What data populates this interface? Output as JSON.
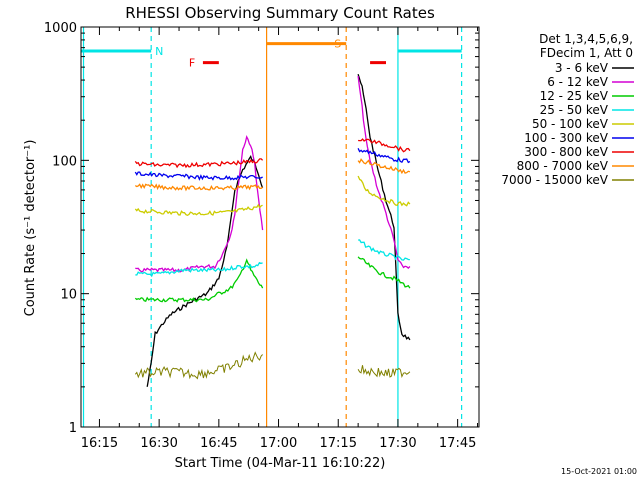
{
  "chart_data": {
    "type": "line",
    "title": "RHESSI Observing Summary Count Rates",
    "xlabel": "Start Time (04-Mar-11 16:10:22)",
    "ylabel": "Count Rate (s⁻¹ detector⁻¹)",
    "yscale": "log",
    "ylim": [
      1,
      1000
    ],
    "xlim": [
      "16:10:22",
      "17:50:22"
    ],
    "x_ticks": [
      "16:15",
      "16:30",
      "16:45",
      "17:00",
      "17:15",
      "17:30",
      "17:45"
    ],
    "y_ticks": [
      "1",
      "10",
      "100",
      "1000"
    ],
    "legend_position": "right",
    "legend_header": [
      "Det 1,3,4,5,6,9,",
      "FDecim 1, Att 0"
    ],
    "timestamp": "15-Oct-2021 01:00",
    "series": [
      {
        "name": "3 - 6 keV",
        "color": "#000000",
        "segments": [
          {
            "points": [
              [
                "16:27",
                2
              ],
              [
                "16:28",
                3
              ],
              [
                "16:29",
                5
              ],
              [
                "16:31",
                6
              ],
              [
                "16:33",
                7
              ],
              [
                "16:36",
                8
              ],
              [
                "16:39",
                9
              ],
              [
                "16:42",
                10
              ],
              [
                "16:45",
                13
              ],
              [
                "16:47",
                22
              ],
              [
                "16:48",
                35
              ],
              [
                "16:49",
                60
              ],
              [
                "16:51",
                85
              ],
              [
                "16:53",
                105
              ],
              [
                "16:54",
                95
              ],
              [
                "16:55",
                80
              ],
              [
                "16:56",
                62
              ]
            ]
          },
          {
            "points": [
              [
                "17:20",
                450
              ],
              [
                "17:21",
                350
              ],
              [
                "17:22",
                240
              ],
              [
                "17:23",
                150
              ],
              [
                "17:25",
                85
              ],
              [
                "17:27",
                50
              ],
              [
                "17:29",
                32
              ],
              [
                "17:30",
                7
              ],
              [
                "17:31",
                5
              ],
              [
                "17:33",
                4.5
              ]
            ]
          }
        ]
      },
      {
        "name": "6 - 12 keV",
        "color": "#d400d4",
        "segments": [
          {
            "points": [
              [
                "16:24",
                15
              ],
              [
                "16:30",
                15
              ],
              [
                "16:36",
                15
              ],
              [
                "16:41",
                16
              ],
              [
                "16:44",
                16
              ],
              [
                "16:46",
                20
              ],
              [
                "16:48",
                28
              ],
              [
                "16:49",
                40
              ],
              [
                "16:50",
                70
              ],
              [
                "16:51",
                120
              ],
              [
                "16:52",
                150
              ],
              [
                "16:53",
                130
              ],
              [
                "16:54",
                95
              ],
              [
                "16:55",
                50
              ],
              [
                "16:56",
                30
              ]
            ]
          },
          {
            "points": [
              [
                "17:20",
                420
              ],
              [
                "17:21",
                250
              ],
              [
                "17:22",
                140
              ],
              [
                "17:23",
                100
              ],
              [
                "17:25",
                60
              ],
              [
                "17:27",
                40
              ],
              [
                "17:29",
                25
              ],
              [
                "17:30",
                18
              ],
              [
                "17:31",
                16
              ],
              [
                "17:33",
                16
              ]
            ]
          }
        ]
      },
      {
        "name": "12 - 25 keV",
        "color": "#00cc00",
        "segments": [
          {
            "points": [
              [
                "16:24",
                9
              ],
              [
                "16:30",
                9
              ],
              [
                "16:36",
                9
              ],
              [
                "16:42",
                9
              ],
              [
                "16:45",
                10
              ],
              [
                "16:48",
                11
              ],
              [
                "16:50",
                13
              ],
              [
                "16:52",
                18
              ],
              [
                "16:53",
                15
              ],
              [
                "16:55",
                12
              ],
              [
                "16:56",
                11
              ]
            ]
          },
          {
            "points": [
              [
                "17:20",
                19
              ],
              [
                "17:23",
                16
              ],
              [
                "17:26",
                14
              ],
              [
                "17:29",
                13
              ],
              [
                "17:31",
                12
              ],
              [
                "17:33",
                11
              ]
            ]
          }
        ]
      },
      {
        "name": "25 - 50 keV",
        "color": "#00e5e5",
        "segments": [
          {
            "points": [
              [
                "16:24",
                14
              ],
              [
                "16:30",
                14
              ],
              [
                "16:36",
                15
              ],
              [
                "16:42",
                15
              ],
              [
                "16:46",
                15
              ],
              [
                "16:50",
                16
              ],
              [
                "16:54",
                16
              ],
              [
                "16:56",
                17
              ]
            ]
          },
          {
            "points": [
              [
                "17:20",
                25
              ],
              [
                "17:23",
                22
              ],
              [
                "17:26",
                20
              ],
              [
                "17:29",
                19
              ],
              [
                "17:31",
                18
              ],
              [
                "17:33",
                18
              ]
            ]
          }
        ]
      },
      {
        "name": "50 - 100 keV",
        "color": "#cccc00",
        "segments": [
          {
            "points": [
              [
                "16:24",
                42
              ],
              [
                "16:30",
                41
              ],
              [
                "16:36",
                40
              ],
              [
                "16:42",
                40
              ],
              [
                "16:48",
                41
              ],
              [
                "16:52",
                43
              ],
              [
                "16:56",
                46
              ]
            ]
          },
          {
            "points": [
              [
                "17:20",
                75
              ],
              [
                "17:22",
                60
              ],
              [
                "17:24",
                55
              ],
              [
                "17:26",
                52
              ],
              [
                "17:29",
                48
              ],
              [
                "17:31",
                47
              ],
              [
                "17:33",
                47
              ]
            ]
          }
        ]
      },
      {
        "name": "100 - 300 keV",
        "color": "#0000ee",
        "segments": [
          {
            "points": [
              [
                "16:24",
                80
              ],
              [
                "16:30",
                77
              ],
              [
                "16:36",
                76
              ],
              [
                "16:42",
                74
              ],
              [
                "16:48",
                74
              ],
              [
                "16:52",
                75
              ],
              [
                "16:56",
                75
              ]
            ]
          },
          {
            "points": [
              [
                "17:20",
                120
              ],
              [
                "17:23",
                115
              ],
              [
                "17:26",
                108
              ],
              [
                "17:29",
                102
              ],
              [
                "17:31",
                100
              ],
              [
                "17:33",
                98
              ]
            ]
          }
        ]
      },
      {
        "name": "300 - 800 keV",
        "color": "#ee0000",
        "segments": [
          {
            "points": [
              [
                "16:24",
                95
              ],
              [
                "16:30",
                92
              ],
              [
                "16:36",
                92
              ],
              [
                "16:42",
                93
              ],
              [
                "16:48",
                95
              ],
              [
                "16:52",
                97
              ],
              [
                "16:56",
                100
              ]
            ]
          },
          {
            "points": [
              [
                "17:20",
                145
              ],
              [
                "17:23",
                140
              ],
              [
                "17:26",
                133
              ],
              [
                "17:29",
                127
              ],
              [
                "17:31",
                120
              ],
              [
                "17:33",
                118
              ]
            ]
          }
        ]
      },
      {
        "name": "800 - 7000 keV",
        "color": "#ff8800",
        "segments": [
          {
            "points": [
              [
                "16:24",
                65
              ],
              [
                "16:30",
                63
              ],
              [
                "16:36",
                62
              ],
              [
                "16:42",
                62
              ],
              [
                "16:48",
                62
              ],
              [
                "16:52",
                63
              ],
              [
                "16:56",
                63
              ]
            ]
          },
          {
            "points": [
              [
                "17:20",
                100
              ],
              [
                "17:23",
                96
              ],
              [
                "17:26",
                90
              ],
              [
                "17:29",
                86
              ],
              [
                "17:31",
                83
              ],
              [
                "17:33",
                82
              ]
            ]
          }
        ]
      },
      {
        "name": "7000 - 15000 keV",
        "color": "#808000",
        "segments": [
          {
            "points": [
              [
                "16:24",
                2.5
              ],
              [
                "16:32",
                2.6
              ],
              [
                "16:40",
                2.5
              ],
              [
                "16:46",
                2.7
              ],
              [
                "16:50",
                3
              ],
              [
                "16:53",
                3.3
              ],
              [
                "16:56",
                3.5
              ]
            ]
          },
          {
            "points": [
              [
                "17:20",
                2.7
              ],
              [
                "17:24",
                2.6
              ],
              [
                "17:28",
                2.5
              ],
              [
                "17:31",
                2.6
              ],
              [
                "17:33",
                2.6
              ]
            ]
          }
        ]
      }
    ],
    "state_bars": [
      {
        "label": "N",
        "color": "#00e5e5",
        "value": 660,
        "segments": [
          [
            "16:10:22",
            "16:28"
          ],
          [
            "17:30",
            "17:46"
          ]
        ]
      },
      {
        "label": "S",
        "color": "#ff8800",
        "value": 750,
        "segments": [
          [
            "16:57",
            "17:17"
          ]
        ]
      },
      {
        "label": "F",
        "color": "#ee0000",
        "value": 540,
        "segments": [
          [
            "16:41",
            "16:45"
          ],
          [
            "17:23",
            "17:27"
          ]
        ]
      }
    ],
    "vertical_markers": [
      {
        "time": "16:11",
        "color": "#00e5e5",
        "style": "solid"
      },
      {
        "time": "16:28",
        "color": "#00e5e5",
        "style": "dashed"
      },
      {
        "time": "17:30",
        "color": "#00e5e5",
        "style": "solid"
      },
      {
        "time": "17:46",
        "color": "#00e5e5",
        "style": "dashed"
      },
      {
        "time": "16:57",
        "color": "#ff8800",
        "style": "solid"
      },
      {
        "time": "17:17",
        "color": "#ff8800",
        "style": "dashed"
      }
    ]
  }
}
